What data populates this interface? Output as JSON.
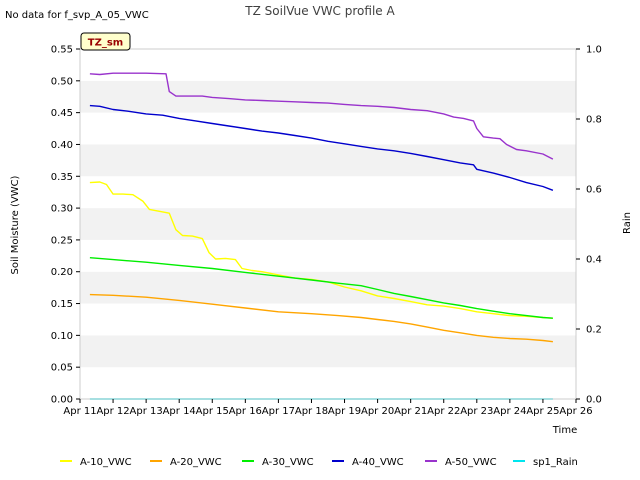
{
  "header": {
    "no_data_text": "No data for f_svp_A_05_VWC",
    "site_badge": "TZ_sm"
  },
  "chart_data": {
    "type": "line",
    "title": "TZ SoilVue VWC profile A",
    "xlabel": "Time",
    "ylabel": "Soil Moisture (VWC)",
    "y2label": "Rain",
    "xlim": [
      11,
      26
    ],
    "ylim": [
      0,
      0.55
    ],
    "y2lim": [
      0,
      1.0
    ],
    "x_ticks": [
      11,
      12,
      13,
      14,
      15,
      16,
      17,
      18,
      19,
      20,
      21,
      22,
      23,
      24,
      25,
      26
    ],
    "x_tick_labels": [
      "Apr 11",
      "Apr 12",
      "Apr 13",
      "Apr 14",
      "Apr 15",
      "Apr 16",
      "Apr 17",
      "Apr 18",
      "Apr 19",
      "Apr 20",
      "Apr 21",
      "Apr 22",
      "Apr 23",
      "Apr 24",
      "Apr 25",
      "Apr 26"
    ],
    "y_ticks": [
      0.0,
      0.05,
      0.1,
      0.15,
      0.2,
      0.25,
      0.3,
      0.35,
      0.4,
      0.45,
      0.5,
      0.55
    ],
    "y_tick_labels": [
      "0.00",
      "0.05",
      "0.10",
      "0.15",
      "0.20",
      "0.25",
      "0.30",
      "0.35",
      "0.40",
      "0.45",
      "0.50",
      "0.55"
    ],
    "y2_ticks": [
      0.0,
      0.2,
      0.4,
      0.6,
      0.8,
      1.0
    ],
    "y2_tick_labels": [
      "0.0",
      "0.2",
      "0.4",
      "0.6",
      "0.8",
      "1.0"
    ],
    "grid": "alternating horizontal bands",
    "legend_position": "bottom",
    "series": [
      {
        "name": "A-10_VWC",
        "color": "#ffff00",
        "axis": "left",
        "x": [
          11.3,
          11.6,
          11.8,
          12.0,
          12.3,
          12.6,
          12.9,
          13.1,
          13.4,
          13.7,
          13.9,
          14.1,
          14.4,
          14.7,
          14.9,
          15.1,
          15.4,
          15.7,
          15.9,
          16.2,
          16.5,
          17.0,
          17.5,
          18.0,
          18.5,
          19.0,
          19.5,
          20.0,
          20.5,
          21.0,
          21.5,
          22.0,
          22.5,
          23.0,
          23.5,
          24.0,
          24.5,
          25.0,
          25.3
        ],
        "y": [
          0.34,
          0.341,
          0.337,
          0.322,
          0.322,
          0.321,
          0.311,
          0.298,
          0.295,
          0.292,
          0.266,
          0.257,
          0.256,
          0.252,
          0.23,
          0.22,
          0.221,
          0.219,
          0.205,
          0.202,
          0.2,
          0.195,
          0.19,
          0.188,
          0.184,
          0.176,
          0.17,
          0.162,
          0.158,
          0.153,
          0.148,
          0.146,
          0.142,
          0.137,
          0.134,
          0.131,
          0.13,
          0.128,
          0.127
        ]
      },
      {
        "name": "A-20_VWC",
        "color": "#ffa500",
        "axis": "left",
        "x": [
          11.3,
          12.0,
          13.0,
          14.0,
          15.0,
          16.0,
          17.0,
          18.0,
          18.8,
          19.5,
          20.0,
          20.5,
          21.0,
          21.5,
          22.0,
          22.5,
          23.0,
          23.5,
          24.0,
          24.5,
          25.0,
          25.3
        ],
        "y": [
          0.164,
          0.163,
          0.16,
          0.155,
          0.149,
          0.143,
          0.137,
          0.134,
          0.131,
          0.128,
          0.125,
          0.122,
          0.118,
          0.113,
          0.108,
          0.104,
          0.1,
          0.097,
          0.095,
          0.094,
          0.092,
          0.09
        ]
      },
      {
        "name": "A-30_VWC",
        "color": "#00ee00",
        "axis": "left",
        "x": [
          11.3,
          12.0,
          13.0,
          14.0,
          15.0,
          16.0,
          17.0,
          18.0,
          18.8,
          19.5,
          20.0,
          20.5,
          21.0,
          21.5,
          22.0,
          22.5,
          23.0,
          23.5,
          24.0,
          24.5,
          25.0,
          25.3
        ],
        "y": [
          0.222,
          0.219,
          0.215,
          0.21,
          0.205,
          0.199,
          0.193,
          0.187,
          0.182,
          0.178,
          0.172,
          0.166,
          0.161,
          0.156,
          0.151,
          0.147,
          0.142,
          0.138,
          0.134,
          0.131,
          0.128,
          0.127
        ]
      },
      {
        "name": "A-40_VWC",
        "color": "#0000cc",
        "axis": "left",
        "x": [
          11.3,
          11.6,
          12.0,
          12.5,
          13.0,
          13.5,
          14.0,
          14.5,
          15.0,
          15.5,
          16.0,
          16.5,
          17.0,
          17.5,
          18.0,
          18.5,
          19.0,
          19.5,
          20.0,
          20.5,
          21.0,
          21.5,
          22.0,
          22.5,
          22.9,
          23.0,
          23.5,
          24.0,
          24.5,
          25.0,
          25.3
        ],
        "y": [
          0.461,
          0.46,
          0.455,
          0.452,
          0.448,
          0.446,
          0.441,
          0.437,
          0.433,
          0.429,
          0.425,
          0.421,
          0.418,
          0.414,
          0.41,
          0.405,
          0.401,
          0.397,
          0.393,
          0.39,
          0.386,
          0.381,
          0.376,
          0.371,
          0.368,
          0.361,
          0.355,
          0.348,
          0.34,
          0.334,
          0.328
        ]
      },
      {
        "name": "A-50_VWC",
        "color": "#9933cc",
        "axis": "left",
        "x": [
          11.3,
          11.6,
          12.0,
          12.5,
          13.0,
          13.6,
          13.7,
          13.9,
          14.3,
          14.7,
          15.0,
          15.5,
          16.0,
          16.5,
          17.0,
          17.5,
          18.0,
          18.5,
          19.0,
          19.5,
          20.0,
          20.5,
          21.0,
          21.5,
          22.0,
          22.3,
          22.6,
          22.9,
          23.0,
          23.2,
          23.5,
          23.7,
          23.9,
          24.2,
          24.5,
          25.0,
          25.3
        ],
        "y": [
          0.511,
          0.51,
          0.512,
          0.512,
          0.512,
          0.511,
          0.483,
          0.476,
          0.476,
          0.476,
          0.474,
          0.472,
          0.47,
          0.469,
          0.468,
          0.467,
          0.466,
          0.465,
          0.463,
          0.461,
          0.46,
          0.458,
          0.455,
          0.453,
          0.448,
          0.443,
          0.441,
          0.437,
          0.425,
          0.412,
          0.41,
          0.409,
          0.4,
          0.392,
          0.39,
          0.385,
          0.377
        ]
      },
      {
        "name": "sp1_Rain",
        "color": "#00e5ee",
        "axis": "right",
        "x": [
          11.3,
          25.3
        ],
        "y": [
          0.0,
          0.0
        ]
      }
    ]
  }
}
